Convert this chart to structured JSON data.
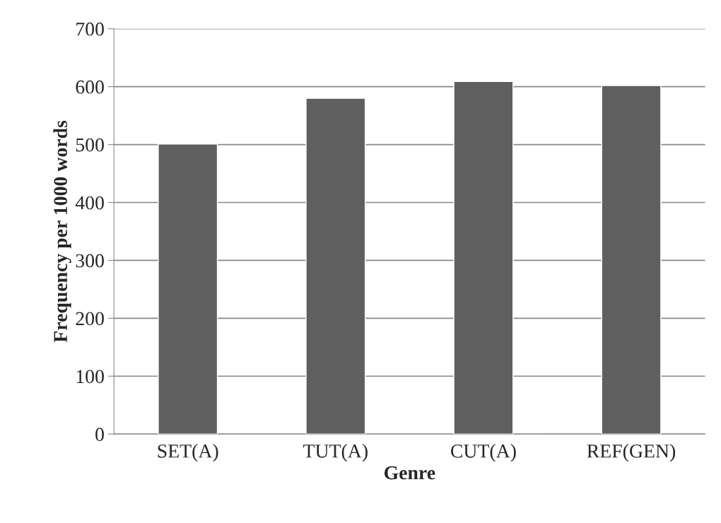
{
  "chart_data": {
    "type": "bar",
    "xlabel": "Genre",
    "ylabel": "Frequency per 1000 words",
    "categories": [
      "SET(A)",
      "TUT(A)",
      "CUT(A)",
      "REF(GEN)"
    ],
    "values": [
      501,
      580,
      609,
      602
    ],
    "color": "#5f5f5f",
    "ylim": [
      0,
      700
    ],
    "yticks": [
      0,
      100,
      200,
      300,
      400,
      500,
      600,
      700
    ],
    "grid": "y"
  }
}
